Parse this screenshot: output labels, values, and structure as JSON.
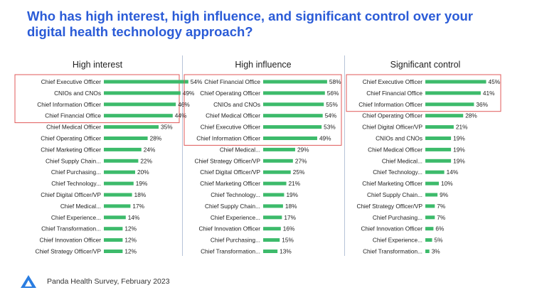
{
  "title_line1": "Who has high interest, high influence, and significant control over your",
  "title_line2": "digital health technology approach?",
  "source": "Panda Health Survey, February 2023",
  "colors": {
    "bar": "#3dbb6b",
    "highlight_box": "#e05a5a",
    "title": "#2a5bd7"
  },
  "chart_data": [
    {
      "type": "bar",
      "title": "High interest",
      "highlighted_count": 4,
      "categories": [
        "Chief Executive Officer",
        "CNIOs and CNOs",
        "Chief Information Officer",
        "Chief Financial Office",
        "Chief Medical Officer",
        "Chief Operating Officer",
        "Chief Marketing Officer",
        "Chief Supply Chain...",
        "Chief Purchasing...",
        "Chief Technology...",
        "Chief Digital Officer/VP",
        "Chief Medical...",
        "Chief Experience...",
        "Chief Transformation...",
        "Chief Innovation Officer",
        "Chief Strategy Officer/VP"
      ],
      "values": [
        54,
        49,
        46,
        44,
        35,
        28,
        24,
        22,
        20,
        19,
        18,
        17,
        14,
        12,
        12,
        12
      ]
    },
    {
      "type": "bar",
      "title": "High influence",
      "highlighted_count": 6,
      "categories": [
        "Chief Financial Office",
        "Chief Operating Officer",
        "CNIOs and CNOs",
        "Chief Medical Officer",
        "Chief Executive Officer",
        "Chief Information Officer",
        "Chief Medical...",
        "Chief Strategy Officer/VP",
        "Chief Digital Officer/VP",
        "Chief Marketing Officer",
        "Chief Technology...",
        "Chief Supply Chain...",
        "Chief Experience...",
        "Chief Innovation Officer",
        "Chief Purchasing...",
        "Chief Transformation..."
      ],
      "values": [
        58,
        56,
        55,
        54,
        53,
        49,
        29,
        27,
        25,
        21,
        19,
        18,
        17,
        16,
        15,
        13
      ]
    },
    {
      "type": "bar",
      "title": "Significant control",
      "highlighted_count": 3,
      "categories": [
        "Chief Executive Officer",
        "Chief Financial Office",
        "Chief Information Officer",
        "Chief Operating Officer",
        "Chief Digital Officer/VP",
        "CNIOs and CNOs",
        "Chief Medical Officer",
        "Chief Medical...",
        "Chief Technology...",
        "Chief Marketing Officer",
        "Chief Supply Chain...",
        "Chief Strategy Officer/VP",
        "Chief Purchasing...",
        "Chief Innovation Officer",
        "Chief Experience...",
        "Chief Transformation..."
      ],
      "values": [
        45,
        41,
        36,
        28,
        21,
        19,
        19,
        19,
        14,
        10,
        9,
        7,
        7,
        6,
        5,
        3
      ]
    }
  ]
}
